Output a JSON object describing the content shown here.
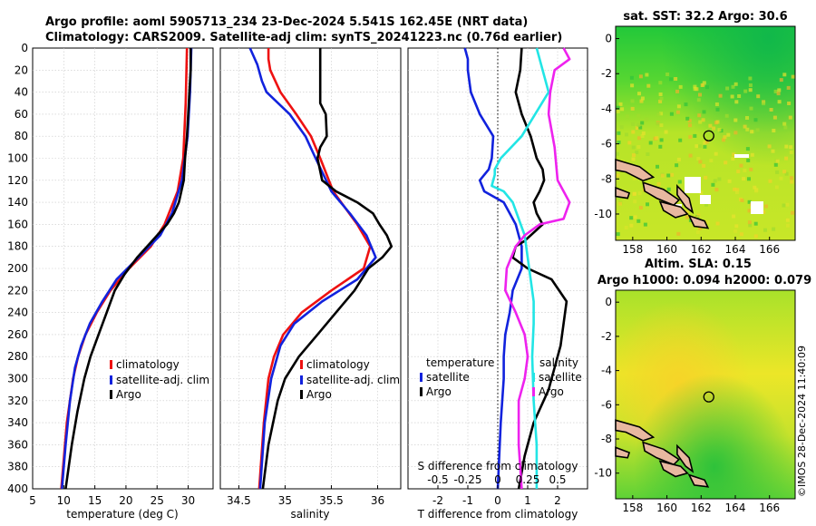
{
  "header": {
    "title_line1": "Argo profile: aoml 5905713_234 23-Dec-2024 5.541S 162.45E (NRT data)",
    "title_line2": "Climatology: CARS2009. Satellite-adj clim: synTS_20241223.nc (0.76d earlier)"
  },
  "colors": {
    "climatology": "#ee1111",
    "satellite": "#1122dd",
    "argo": "#000000",
    "t_satellite": "#22e5e5",
    "s_satellite": "#ee22ee"
  },
  "chart_data": [
    {
      "type": "line",
      "id": "temperature",
      "xlabel": "temperature (deg C)",
      "ylabel": "",
      "xlim": [
        5,
        34
      ],
      "ylim": [
        400,
        0
      ],
      "x_ticks": [
        "5",
        "10",
        "15",
        "20",
        "25",
        "30"
      ],
      "y_ticks": [
        "0",
        "20",
        "40",
        "60",
        "80",
        "100",
        "120",
        "140",
        "160",
        "180",
        "200",
        "220",
        "240",
        "260",
        "280",
        "300",
        "320",
        "340",
        "360",
        "380",
        "400"
      ],
      "legend": [
        "climatology",
        "satellite-adj. clim",
        "Argo"
      ],
      "series": [
        {
          "name": "climatology",
          "points": [
            [
              0,
              29.8
            ],
            [
              50,
              29.6
            ],
            [
              100,
              29.2
            ],
            [
              130,
              28.3
            ],
            [
              160,
              26.2
            ],
            [
              180,
              24.0
            ],
            [
              200,
              20.5
            ],
            [
              220,
              17.5
            ],
            [
              240,
              15.3
            ],
            [
              260,
              13.5
            ],
            [
              280,
              12.3
            ],
            [
              300,
              11.5
            ],
            [
              340,
              10.5
            ],
            [
              400,
              9.6
            ]
          ]
        },
        {
          "name": "satellite-adj. clim",
          "points": [
            [
              0,
              30.5
            ],
            [
              40,
              30.3
            ],
            [
              80,
              29.9
            ],
            [
              120,
              29.0
            ],
            [
              150,
              27.4
            ],
            [
              170,
              25.5
            ],
            [
              190,
              22.0
            ],
            [
              210,
              18.5
            ],
            [
              230,
              16.2
            ],
            [
              250,
              14.2
            ],
            [
              270,
              12.8
            ],
            [
              290,
              11.8
            ],
            [
              320,
              11.0
            ],
            [
              360,
              10.3
            ],
            [
              400,
              9.7
            ]
          ]
        },
        {
          "name": "Argo",
          "points": [
            [
              0,
              30.4
            ],
            [
              20,
              30.4
            ],
            [
              40,
              30.2
            ],
            [
              60,
              30.0
            ],
            [
              80,
              29.8
            ],
            [
              100,
              29.5
            ],
            [
              120,
              29.3
            ],
            [
              130,
              28.9
            ],
            [
              140,
              28.5
            ],
            [
              150,
              27.7
            ],
            [
              160,
              26.6
            ],
            [
              175,
              24.2
            ],
            [
              190,
              21.8
            ],
            [
              205,
              19.8
            ],
            [
              220,
              18.2
            ],
            [
              240,
              16.9
            ],
            [
              260,
              15.6
            ],
            [
              280,
              14.3
            ],
            [
              300,
              13.3
            ],
            [
              330,
              12.2
            ],
            [
              360,
              11.3
            ],
            [
              400,
              10.3
            ]
          ]
        }
      ]
    },
    {
      "type": "line",
      "id": "salinity",
      "xlabel": "salinity",
      "xlim": [
        34.3,
        36.25
      ],
      "ylim": [
        400,
        0
      ],
      "x_ticks": [
        "34.5",
        "35",
        "35.5",
        "36"
      ],
      "legend": [
        "climatology",
        "satellite-adj. clim",
        "Argo"
      ],
      "series": [
        {
          "name": "climatology",
          "points": [
            [
              0,
              34.82
            ],
            [
              10,
              34.82
            ],
            [
              20,
              34.84
            ],
            [
              40,
              34.95
            ],
            [
              60,
              35.12
            ],
            [
              80,
              35.28
            ],
            [
              100,
              35.38
            ],
            [
              130,
              35.52
            ],
            [
              160,
              35.78
            ],
            [
              180,
              35.92
            ],
            [
              200,
              35.85
            ],
            [
              220,
              35.5
            ],
            [
              240,
              35.18
            ],
            [
              260,
              34.98
            ],
            [
              280,
              34.88
            ],
            [
              300,
              34.82
            ],
            [
              340,
              34.77
            ],
            [
              400,
              34.72
            ]
          ]
        },
        {
          "name": "satellite-adj. clim",
          "points": [
            [
              0,
              34.62
            ],
            [
              15,
              34.7
            ],
            [
              30,
              34.75
            ],
            [
              40,
              34.8
            ],
            [
              60,
              35.05
            ],
            [
              80,
              35.22
            ],
            [
              100,
              35.33
            ],
            [
              130,
              35.5
            ],
            [
              150,
              35.7
            ],
            [
              170,
              35.88
            ],
            [
              190,
              35.98
            ],
            [
              210,
              35.78
            ],
            [
              230,
              35.4
            ],
            [
              250,
              35.1
            ],
            [
              270,
              34.95
            ],
            [
              300,
              34.85
            ],
            [
              340,
              34.78
            ],
            [
              400,
              34.73
            ]
          ]
        },
        {
          "name": "Argo",
          "points": [
            [
              0,
              35.38
            ],
            [
              50,
              35.38
            ],
            [
              60,
              35.44
            ],
            [
              80,
              35.45
            ],
            [
              90,
              35.38
            ],
            [
              100,
              35.35
            ],
            [
              120,
              35.4
            ],
            [
              130,
              35.55
            ],
            [
              140,
              35.78
            ],
            [
              150,
              35.95
            ],
            [
              160,
              36.02
            ],
            [
              170,
              36.1
            ],
            [
              180,
              36.15
            ],
            [
              190,
              36.05
            ],
            [
              200,
              35.9
            ],
            [
              220,
              35.75
            ],
            [
              240,
              35.55
            ],
            [
              260,
              35.35
            ],
            [
              280,
              35.15
            ],
            [
              300,
              35.0
            ],
            [
              320,
              34.92
            ],
            [
              360,
              34.82
            ],
            [
              400,
              34.76
            ]
          ]
        }
      ]
    },
    {
      "type": "line",
      "id": "differences",
      "xlabel": "T difference from climatology",
      "xlim": [
        -3,
        3
      ],
      "ylim": [
        400,
        0
      ],
      "x_ticks": [
        "-2",
        "-1",
        "0",
        "1",
        "2"
      ],
      "top_label": "S difference from climatology",
      "top_ticks": [
        "-0.5",
        "-0.25",
        "0",
        "0.25",
        "0.5"
      ],
      "legend_groups": [
        {
          "title": "temperature",
          "items": [
            "satellite",
            "Argo"
          ]
        },
        {
          "title": "salinity",
          "items": [
            "satellite",
            "Argo"
          ]
        }
      ],
      "series": [
        {
          "name": "temperature satellite",
          "points": [
            [
              0,
              -1.1
            ],
            [
              10,
              -1.0
            ],
            [
              20,
              -1.0
            ],
            [
              40,
              -0.9
            ],
            [
              60,
              -0.6
            ],
            [
              80,
              -0.15
            ],
            [
              100,
              -0.2
            ],
            [
              110,
              -0.3
            ],
            [
              120,
              -0.6
            ],
            [
              130,
              -0.45
            ],
            [
              140,
              0.2
            ],
            [
              160,
              0.6
            ],
            [
              180,
              0.8
            ],
            [
              200,
              0.8
            ],
            [
              220,
              0.5
            ],
            [
              240,
              0.4
            ],
            [
              260,
              0.25
            ],
            [
              280,
              0.2
            ],
            [
              300,
              0.2
            ],
            [
              340,
              0.1
            ],
            [
              400,
              0.0
            ]
          ]
        },
        {
          "name": "temperature Argo",
          "points": [
            [
              0,
              0.8
            ],
            [
              20,
              0.75
            ],
            [
              40,
              0.6
            ],
            [
              60,
              0.8
            ],
            [
              80,
              1.1
            ],
            [
              100,
              1.3
            ],
            [
              110,
              1.5
            ],
            [
              120,
              1.55
            ],
            [
              130,
              1.4
            ],
            [
              140,
              1.2
            ],
            [
              150,
              1.3
            ],
            [
              160,
              1.5
            ],
            [
              175,
              0.9
            ],
            [
              180,
              0.6
            ],
            [
              190,
              0.5
            ],
            [
              200,
              1.0
            ],
            [
              210,
              1.8
            ],
            [
              230,
              2.3
            ],
            [
              250,
              2.2
            ],
            [
              270,
              2.1
            ],
            [
              290,
              1.9
            ],
            [
              310,
              1.7
            ],
            [
              340,
              1.2
            ],
            [
              370,
              0.9
            ],
            [
              400,
              0.7
            ]
          ]
        },
        {
          "name": "salinity satellite",
          "points": [
            [
              0,
              1.3
            ],
            [
              10,
              1.4
            ],
            [
              40,
              1.7
            ],
            [
              80,
              0.8
            ],
            [
              100,
              0.1
            ],
            [
              110,
              -0.1
            ],
            [
              115,
              -0.1
            ],
            [
              125,
              -0.2
            ],
            [
              130,
              0.2
            ],
            [
              140,
              0.5
            ],
            [
              170,
              0.9
            ],
            [
              190,
              1.0
            ],
            [
              210,
              1.1
            ],
            [
              230,
              1.2
            ],
            [
              250,
              1.2
            ],
            [
              280,
              1.15
            ],
            [
              320,
              1.2
            ],
            [
              360,
              1.3
            ],
            [
              400,
              1.3
            ]
          ]
        },
        {
          "name": "salinity Argo",
          "points": [
            [
              0,
              2.2
            ],
            [
              10,
              2.4
            ],
            [
              20,
              1.9
            ],
            [
              40,
              1.75
            ],
            [
              60,
              1.7
            ],
            [
              90,
              1.9
            ],
            [
              120,
              2.0
            ],
            [
              140,
              2.4
            ],
            [
              155,
              2.2
            ],
            [
              160,
              1.4
            ],
            [
              170,
              0.9
            ],
            [
              180,
              0.6
            ],
            [
              200,
              0.3
            ],
            [
              220,
              0.25
            ],
            [
              240,
              0.6
            ],
            [
              260,
              0.9
            ],
            [
              280,
              1.0
            ],
            [
              300,
              0.9
            ],
            [
              320,
              0.7
            ],
            [
              360,
              0.7
            ],
            [
              400,
              0.8
            ]
          ]
        }
      ]
    },
    {
      "type": "heatmap",
      "id": "sst-map",
      "title": "sat. SST: 32.2 Argo: 30.6",
      "xlim": [
        157,
        167.5
      ],
      "ylim": [
        -11.5,
        0.7
      ],
      "x_ticks": [
        "158",
        "160",
        "162",
        "164",
        "166"
      ],
      "y_ticks": [
        "0",
        "-2",
        "-4",
        "-6",
        "-8",
        "-10"
      ],
      "marker": {
        "lon": 162.45,
        "lat": -5.541
      }
    },
    {
      "type": "heatmap",
      "id": "sla-map",
      "title_line1": "Altim. SLA: 0.15",
      "title_line2": "Argo h1000: 0.094 h2000: 0.079",
      "xlim": [
        157,
        167.5
      ],
      "ylim": [
        -11.5,
        0.7
      ],
      "x_ticks": [
        "158",
        "160",
        "162",
        "164",
        "166"
      ],
      "y_ticks": [
        "0",
        "-2",
        "-4",
        "-6",
        "-8",
        "-10"
      ],
      "marker": {
        "lon": 162.45,
        "lat": -5.541
      }
    }
  ],
  "footer": {
    "stamp": "©IMOS 28-Dec-2024 11:40:09"
  }
}
